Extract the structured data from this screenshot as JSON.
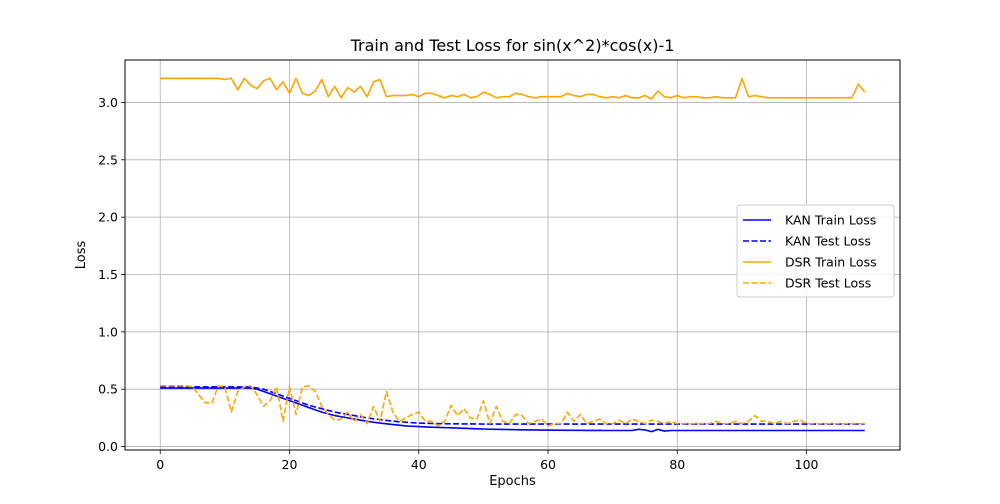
{
  "chart_data": {
    "type": "line",
    "title": "Train and Test Loss for sin(x^2)*cos(x)-1",
    "xlabel": "Epochs",
    "ylabel": "Loss",
    "xlim": [
      -5.45,
      114.45
    ],
    "ylim": [
      -0.03,
      3.37
    ],
    "xticks": [
      0,
      20,
      40,
      60,
      80,
      100
    ],
    "yticks": [
      0.0,
      0.5,
      1.0,
      1.5,
      2.0,
      2.5,
      3.0
    ],
    "xtick_labels": [
      "0",
      "20",
      "40",
      "60",
      "80",
      "100"
    ],
    "ytick_labels": [
      "0.0",
      "0.5",
      "1.0",
      "1.5",
      "2.0",
      "2.5",
      "3.0"
    ],
    "grid": true,
    "legend_position": "center-right",
    "series": [
      {
        "name": "KAN Train Loss",
        "color": "#0000ff",
        "style": "solid",
        "values": [
          0.51,
          0.51,
          0.51,
          0.51,
          0.51,
          0.51,
          0.51,
          0.51,
          0.51,
          0.51,
          0.51,
          0.51,
          0.51,
          0.51,
          0.51,
          0.5,
          0.48,
          0.46,
          0.44,
          0.42,
          0.4,
          0.38,
          0.36,
          0.34,
          0.32,
          0.3,
          0.285,
          0.27,
          0.26,
          0.25,
          0.24,
          0.23,
          0.22,
          0.212,
          0.205,
          0.198,
          0.192,
          0.186,
          0.18,
          0.177,
          0.174,
          0.171,
          0.169,
          0.167,
          0.165,
          0.163,
          0.161,
          0.159,
          0.157,
          0.155,
          0.153,
          0.151,
          0.15,
          0.149,
          0.148,
          0.147,
          0.146,
          0.145,
          0.145,
          0.144,
          0.144,
          0.143,
          0.143,
          0.142,
          0.142,
          0.142,
          0.141,
          0.141,
          0.141,
          0.14,
          0.14,
          0.14,
          0.14,
          0.14,
          0.15,
          0.145,
          0.13,
          0.15,
          0.135,
          0.14,
          0.14,
          0.14,
          0.14,
          0.14,
          0.14,
          0.14,
          0.14,
          0.14,
          0.14,
          0.14,
          0.14,
          0.14,
          0.14,
          0.14,
          0.14,
          0.14,
          0.14,
          0.14,
          0.14,
          0.14,
          0.14,
          0.14,
          0.14,
          0.14,
          0.14,
          0.14,
          0.14,
          0.14,
          0.14,
          0.14
        ]
      },
      {
        "name": "KAN Test Loss",
        "color": "#0000ff",
        "style": "dashed",
        "values": [
          0.52,
          0.52,
          0.52,
          0.52,
          0.52,
          0.52,
          0.52,
          0.52,
          0.52,
          0.52,
          0.52,
          0.52,
          0.52,
          0.52,
          0.52,
          0.51,
          0.5,
          0.48,
          0.46,
          0.44,
          0.42,
          0.4,
          0.38,
          0.36,
          0.345,
          0.33,
          0.315,
          0.3,
          0.29,
          0.28,
          0.27,
          0.26,
          0.25,
          0.242,
          0.235,
          0.228,
          0.222,
          0.216,
          0.212,
          0.208,
          0.205,
          0.203,
          0.201,
          0.2,
          0.199,
          0.198,
          0.198,
          0.197,
          0.197,
          0.197,
          0.196,
          0.196,
          0.196,
          0.196,
          0.196,
          0.196,
          0.196,
          0.196,
          0.196,
          0.196,
          0.196,
          0.196,
          0.196,
          0.196,
          0.196,
          0.196,
          0.196,
          0.196,
          0.196,
          0.196,
          0.196,
          0.196,
          0.196,
          0.196,
          0.196,
          0.196,
          0.196,
          0.196,
          0.196,
          0.196,
          0.196,
          0.196,
          0.196,
          0.196,
          0.196,
          0.196,
          0.196,
          0.196,
          0.196,
          0.196,
          0.196,
          0.196,
          0.196,
          0.196,
          0.196,
          0.196,
          0.196,
          0.196,
          0.196,
          0.196,
          0.196,
          0.196,
          0.196,
          0.196,
          0.196,
          0.196,
          0.196,
          0.196,
          0.196,
          0.196
        ]
      },
      {
        "name": "DSR Train Loss",
        "color": "#ffa500",
        "style": "solid",
        "values": [
          3.21,
          3.21,
          3.21,
          3.21,
          3.21,
          3.21,
          3.21,
          3.21,
          3.21,
          3.21,
          3.2,
          3.21,
          3.11,
          3.21,
          3.15,
          3.12,
          3.19,
          3.21,
          3.11,
          3.18,
          3.08,
          3.21,
          3.08,
          3.06,
          3.1,
          3.2,
          3.05,
          3.14,
          3.04,
          3.13,
          3.09,
          3.14,
          3.05,
          3.18,
          3.2,
          3.05,
          3.06,
          3.06,
          3.06,
          3.07,
          3.05,
          3.08,
          3.08,
          3.06,
          3.04,
          3.06,
          3.05,
          3.07,
          3.04,
          3.05,
          3.09,
          3.07,
          3.04,
          3.05,
          3.05,
          3.08,
          3.07,
          3.05,
          3.04,
          3.05,
          3.05,
          3.05,
          3.05,
          3.08,
          3.06,
          3.05,
          3.07,
          3.07,
          3.05,
          3.04,
          3.05,
          3.04,
          3.06,
          3.04,
          3.04,
          3.06,
          3.03,
          3.1,
          3.05,
          3.04,
          3.06,
          3.04,
          3.05,
          3.05,
          3.04,
          3.04,
          3.05,
          3.04,
          3.04,
          3.04,
          3.21,
          3.05,
          3.06,
          3.05,
          3.04,
          3.04,
          3.04,
          3.04,
          3.04,
          3.04,
          3.04,
          3.04,
          3.04,
          3.04,
          3.04,
          3.04,
          3.04,
          3.04,
          3.16,
          3.09
        ]
      },
      {
        "name": "DSR Test Loss",
        "color": "#ffa500",
        "style": "dashed",
        "values": [
          0.53,
          0.53,
          0.53,
          0.53,
          0.53,
          0.52,
          0.45,
          0.38,
          0.38,
          0.53,
          0.52,
          0.3,
          0.48,
          0.52,
          0.53,
          0.45,
          0.35,
          0.4,
          0.52,
          0.22,
          0.52,
          0.28,
          0.52,
          0.53,
          0.48,
          0.35,
          0.28,
          0.23,
          0.24,
          0.3,
          0.22,
          0.28,
          0.2,
          0.35,
          0.22,
          0.48,
          0.3,
          0.22,
          0.25,
          0.28,
          0.3,
          0.22,
          0.22,
          0.18,
          0.22,
          0.36,
          0.27,
          0.33,
          0.25,
          0.24,
          0.4,
          0.2,
          0.35,
          0.22,
          0.2,
          0.28,
          0.27,
          0.2,
          0.22,
          0.24,
          0.18,
          0.2,
          0.2,
          0.3,
          0.22,
          0.28,
          0.2,
          0.22,
          0.24,
          0.2,
          0.2,
          0.23,
          0.2,
          0.24,
          0.22,
          0.2,
          0.23,
          0.22,
          0.2,
          0.22,
          0.2,
          0.2,
          0.2,
          0.2,
          0.2,
          0.2,
          0.22,
          0.2,
          0.2,
          0.22,
          0.2,
          0.22,
          0.27,
          0.22,
          0.22,
          0.2,
          0.22,
          0.2,
          0.22,
          0.23,
          0.2,
          0.2,
          0.2,
          0.2,
          0.2,
          0.2,
          0.2,
          0.2,
          0.2,
          0.2
        ]
      }
    ]
  }
}
